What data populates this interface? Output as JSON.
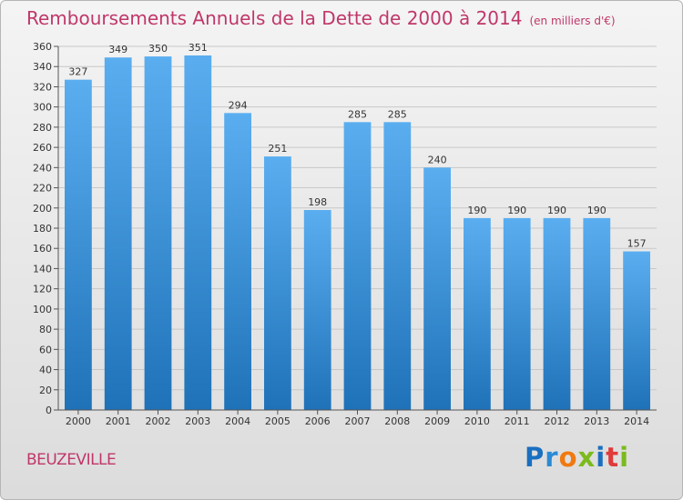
{
  "title": "Remboursements Annuels de la Dette de 2000 à 2014",
  "unit": "(en milliers d'€)",
  "city": "BEUZEVILLE",
  "logo": {
    "letters": [
      "P",
      "r",
      "o",
      "x",
      "i",
      "t",
      "i"
    ],
    "colors": [
      "#1a6fc0",
      "#2b8ad6",
      "#f07a10",
      "#7cba1d",
      "#1a6fc0",
      "#e03a3a",
      "#7cba1d"
    ]
  },
  "colors": {
    "accent": "#c0376a",
    "bar_light": "#5aaef0",
    "bar_dark": "#1f72b8"
  },
  "chart_data": {
    "type": "bar",
    "categories": [
      "2000",
      "2001",
      "2002",
      "2003",
      "2004",
      "2005",
      "2006",
      "2007",
      "2008",
      "2009",
      "2010",
      "2011",
      "2012",
      "2013",
      "2014"
    ],
    "values": [
      327,
      349,
      350,
      351,
      294,
      251,
      198,
      285,
      285,
      240,
      190,
      190,
      190,
      190,
      157
    ],
    "title": "Remboursements Annuels de la Dette de 2000 à 2014",
    "xlabel": "",
    "ylabel": "",
    "ylim": [
      0,
      360
    ],
    "ytick_step": 20,
    "grid": true
  }
}
